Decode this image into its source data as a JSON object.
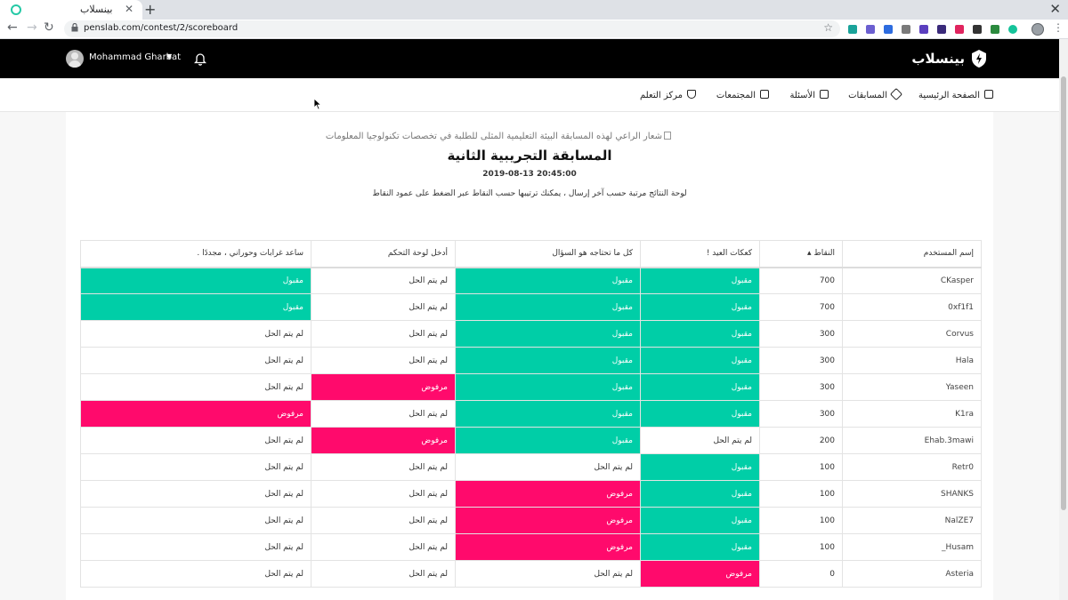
{
  "browser": {
    "tab_title": "بينسلاب",
    "url": "penslab.com/contest/2/scoreboard"
  },
  "header": {
    "user_name": "Mohammad Gharbat",
    "brand": "بينسلاب"
  },
  "menu": {
    "home": "الصفحة الرئيسية",
    "contests": "المسابقات",
    "questions": "الأسئلة",
    "communities": "المجتمعات",
    "learning": "مركز التعلم"
  },
  "contest": {
    "sponsor_alt": "شعار الراعي لهذه المسابقة البيئة التعليمية المثلى للطلبة في تخصصات تكنولوجيا المعلومات",
    "title": "المسابقة التجريبية الثانية",
    "date": "2019-08-13 20:45:00",
    "description": "لوحة النتائج مرتبة حسب آخر إرسال ، يمكنك ترتيبها حسب النقاط عبر الضغط على عمود النقاط"
  },
  "scoreboard": {
    "headers": [
      "إسم المستخدم",
      "النقاط ▴",
      "كعكات العيد !",
      "كل ما تحتاجه هو السؤال",
      "أدخل لوحة التحكم",
      "ساعد غرابات وحوراني ، مجددًا ."
    ],
    "rows": [
      [
        "CKasper",
        "700",
        "مقبول",
        "مقبول",
        "لم يتم الحل",
        "مقبول"
      ],
      [
        "0xf1f1",
        "700",
        "مقبول",
        "مقبول",
        "لم يتم الحل",
        "مقبول"
      ],
      [
        "Corvus",
        "300",
        "مقبول",
        "مقبول",
        "لم يتم الحل",
        "لم يتم الحل"
      ],
      [
        "Hala",
        "300",
        "مقبول",
        "مقبول",
        "لم يتم الحل",
        "لم يتم الحل"
      ],
      [
        "Yaseen",
        "300",
        "مقبول",
        "مقبول",
        "مرفوض",
        "لم يتم الحل"
      ],
      [
        "K1ra",
        "300",
        "مقبول",
        "مقبول",
        "لم يتم الحل",
        "مرفوض"
      ],
      [
        "Ehab.3mawi",
        "200",
        "لم يتم الحل",
        "مقبول",
        "مرفوض",
        "لم يتم الحل"
      ],
      [
        "Retr0",
        "100",
        "مقبول",
        "لم يتم الحل",
        "لم يتم الحل",
        "لم يتم الحل"
      ],
      [
        "SHANKS",
        "100",
        "مقبول",
        "مرفوض",
        "لم يتم الحل",
        "لم يتم الحل"
      ],
      [
        "NalZE7",
        "100",
        "مقبول",
        "مرفوض",
        "لم يتم الحل",
        "لم يتم الحل"
      ],
      [
        "_Husam",
        "100",
        "مقبول",
        "مرفوض",
        "لم يتم الحل",
        "لم يتم الحل"
      ],
      [
        "Asteria",
        "0",
        "مرفوض",
        "لم يتم الحل",
        "لم يتم الحل",
        "لم يتم الحل"
      ]
    ]
  },
  "colors": {
    "accepted": "#00cea7",
    "rejected": "#ff0a6c",
    "nav_bg": "#000000"
  }
}
